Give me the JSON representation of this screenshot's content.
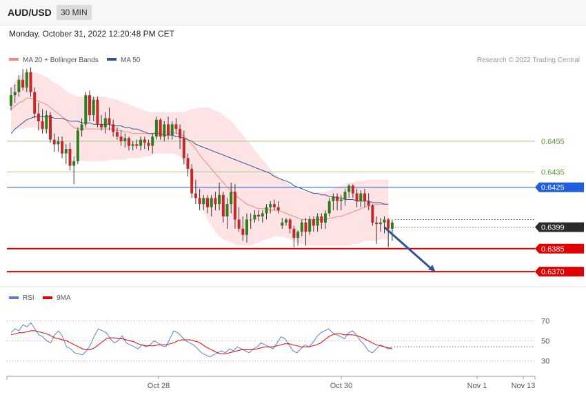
{
  "header": {
    "symbol": "AUD/USD",
    "timeframe": "30 MIN"
  },
  "timestamp": "Monday, October 31, 2022 12:20:48 PM CET",
  "legend_main": [
    {
      "label": "MA 20 + Bollinger Bands",
      "color": "#f08a80"
    },
    {
      "label": "MA 50",
      "color": "#2f5597"
    }
  ],
  "credit": "Research © 2022 Trading Central",
  "legend_rsi": [
    {
      "label": "RSI",
      "color": "#5b7fd6"
    },
    {
      "label": "9MA",
      "color": "#e00000"
    }
  ],
  "colors": {
    "up": "#2e7d1e",
    "down": "#c62828",
    "band": "#fde0e0",
    "resistance": "#a4c98a",
    "pivot": "#1f5fe0",
    "support": "#e00000",
    "last": "#333333",
    "arrow": "#2f5597"
  },
  "chart_data": {
    "type": "candlestick",
    "y_range": [
      0.6362,
      0.6503
    ],
    "x_ticks": [
      "Oct 28",
      "Oct 30",
      "Nov 1",
      "Nov 13"
    ],
    "levels": [
      {
        "label": "0.6455",
        "value": 0.6455,
        "kind": "resistance"
      },
      {
        "label": "0.6435",
        "value": 0.6435,
        "kind": "resistance"
      },
      {
        "label": "0.6425",
        "value": 0.6425,
        "kind": "pivot"
      },
      {
        "label": "0.6399",
        "value": 0.6399,
        "kind": "last"
      },
      {
        "label": "0.6385",
        "value": 0.6385,
        "kind": "support"
      },
      {
        "label": "0.6370",
        "value": 0.637,
        "kind": "support"
      }
    ],
    "ohlc": [
      [
        0.6478,
        0.649,
        0.6475,
        0.6485
      ],
      [
        0.6485,
        0.6492,
        0.648,
        0.6487
      ],
      [
        0.6487,
        0.6498,
        0.6484,
        0.6495
      ],
      [
        0.6495,
        0.6502,
        0.6488,
        0.649
      ],
      [
        0.649,
        0.6502,
        0.6487,
        0.65
      ],
      [
        0.65,
        0.6503,
        0.6484,
        0.6487
      ],
      [
        0.6487,
        0.649,
        0.647,
        0.6473
      ],
      [
        0.6473,
        0.648,
        0.6462,
        0.6468
      ],
      [
        0.6468,
        0.6476,
        0.646,
        0.6463
      ],
      [
        0.6463,
        0.6475,
        0.646,
        0.6472
      ],
      [
        0.6472,
        0.6474,
        0.6454,
        0.6456
      ],
      [
        0.6456,
        0.646,
        0.6448,
        0.6453
      ],
      [
        0.6453,
        0.6458,
        0.6448,
        0.6455
      ],
      [
        0.6455,
        0.6458,
        0.6444,
        0.6447
      ],
      [
        0.6447,
        0.6453,
        0.644,
        0.645
      ],
      [
        0.645,
        0.6454,
        0.6436,
        0.6439
      ],
      [
        0.6439,
        0.6445,
        0.6427,
        0.6442
      ],
      [
        0.6442,
        0.6464,
        0.644,
        0.6462
      ],
      [
        0.6462,
        0.647,
        0.6458,
        0.6466
      ],
      [
        0.6466,
        0.6487,
        0.6464,
        0.6485
      ],
      [
        0.6485,
        0.6488,
        0.6468,
        0.6472
      ],
      [
        0.6472,
        0.6484,
        0.6468,
        0.6482
      ],
      [
        0.6482,
        0.6484,
        0.6464,
        0.6466
      ],
      [
        0.6466,
        0.6472,
        0.6462,
        0.6464
      ],
      [
        0.6464,
        0.6474,
        0.646,
        0.647
      ],
      [
        0.647,
        0.6477,
        0.6462,
        0.6466
      ],
      [
        0.6466,
        0.6469,
        0.6458,
        0.6461
      ],
      [
        0.6461,
        0.6464,
        0.6456,
        0.6458
      ],
      [
        0.6458,
        0.6462,
        0.6452,
        0.6455
      ],
      [
        0.6455,
        0.646,
        0.6451,
        0.6457
      ],
      [
        0.6457,
        0.6458,
        0.6449,
        0.6452
      ],
      [
        0.6452,
        0.6455,
        0.6449,
        0.6453
      ],
      [
        0.6453,
        0.6456,
        0.645,
        0.6452
      ],
      [
        0.6452,
        0.6458,
        0.6449,
        0.6456
      ],
      [
        0.6456,
        0.6458,
        0.645,
        0.6454
      ],
      [
        0.6454,
        0.6456,
        0.6449,
        0.6452
      ],
      [
        0.6452,
        0.646,
        0.6447,
        0.6458
      ],
      [
        0.6458,
        0.6471,
        0.6456,
        0.6469
      ],
      [
        0.6469,
        0.647,
        0.6456,
        0.6458
      ],
      [
        0.6458,
        0.6468,
        0.6455,
        0.6466
      ],
      [
        0.6466,
        0.6471,
        0.6456,
        0.6459
      ],
      [
        0.6459,
        0.6468,
        0.6456,
        0.6466
      ],
      [
        0.6466,
        0.647,
        0.646,
        0.6463
      ],
      [
        0.6463,
        0.6466,
        0.645,
        0.6457
      ],
      [
        0.6457,
        0.6462,
        0.644,
        0.6444
      ],
      [
        0.6444,
        0.6447,
        0.6432,
        0.6437
      ],
      [
        0.6437,
        0.644,
        0.6418,
        0.6421
      ],
      [
        0.6421,
        0.643,
        0.6414,
        0.6418
      ],
      [
        0.6418,
        0.6424,
        0.641,
        0.6414
      ],
      [
        0.6414,
        0.642,
        0.641,
        0.6418
      ],
      [
        0.6418,
        0.642,
        0.6408,
        0.6412
      ],
      [
        0.6412,
        0.642,
        0.6406,
        0.6418
      ],
      [
        0.6418,
        0.6422,
        0.641,
        0.6414
      ],
      [
        0.6414,
        0.6428,
        0.641,
        0.642
      ],
      [
        0.642,
        0.6422,
        0.6402,
        0.6406
      ],
      [
        0.6406,
        0.6418,
        0.6398,
        0.6414
      ],
      [
        0.6414,
        0.6428,
        0.6408,
        0.6422
      ],
      [
        0.6422,
        0.6427,
        0.6398,
        0.6404
      ],
      [
        0.6404,
        0.6412,
        0.6396,
        0.6398
      ],
      [
        0.6398,
        0.6406,
        0.639,
        0.6394
      ],
      [
        0.6394,
        0.6408,
        0.6389,
        0.6404
      ],
      [
        0.6404,
        0.6408,
        0.6398,
        0.6404
      ],
      [
        0.6404,
        0.641,
        0.6402,
        0.6407
      ],
      [
        0.6407,
        0.641,
        0.6403,
        0.6406
      ],
      [
        0.6406,
        0.641,
        0.6402,
        0.6408
      ],
      [
        0.6408,
        0.6414,
        0.6404,
        0.6412
      ],
      [
        0.6412,
        0.6416,
        0.6408,
        0.6414
      ],
      [
        0.6414,
        0.6417,
        0.641,
        0.6412
      ],
      [
        0.6412,
        0.6416,
        0.6408,
        0.641
      ],
      [
        0.64,
        0.6405,
        0.6398,
        0.6402
      ],
      [
        0.6402,
        0.6405,
        0.64,
        0.6404
      ],
      [
        0.6404,
        0.6405,
        0.6395,
        0.6398
      ],
      [
        0.6398,
        0.64,
        0.6386,
        0.6392
      ],
      [
        0.6392,
        0.6397,
        0.6387,
        0.6396
      ],
      [
        0.6396,
        0.6404,
        0.6393,
        0.6402
      ],
      [
        0.6402,
        0.6405,
        0.6387,
        0.6396
      ],
      [
        0.6396,
        0.6406,
        0.6394,
        0.6404
      ],
      [
        0.6404,
        0.6406,
        0.6396,
        0.64
      ],
      [
        0.64,
        0.6408,
        0.6396,
        0.6406
      ],
      [
        0.6406,
        0.6408,
        0.6398,
        0.6402
      ],
      [
        0.6402,
        0.641,
        0.6398,
        0.6408
      ],
      [
        0.6408,
        0.6418,
        0.6406,
        0.6416
      ],
      [
        0.6416,
        0.6421,
        0.641,
        0.6419
      ],
      [
        0.6419,
        0.6421,
        0.641,
        0.6416
      ],
      [
        0.6416,
        0.642,
        0.641,
        0.6417
      ],
      [
        0.6417,
        0.6424,
        0.6413,
        0.6422
      ],
      [
        0.6422,
        0.6427,
        0.6418,
        0.6426
      ],
      [
        0.6426,
        0.6427,
        0.6418,
        0.6421
      ],
      [
        0.6421,
        0.6424,
        0.6412,
        0.6416
      ],
      [
        0.6416,
        0.6423,
        0.6412,
        0.6421
      ],
      [
        0.6421,
        0.6424,
        0.6412,
        0.6416
      ],
      [
        0.6416,
        0.6421,
        0.641,
        0.6413
      ],
      [
        0.6413,
        0.6414,
        0.64,
        0.6402
      ],
      [
        0.6402,
        0.6406,
        0.6388,
        0.6401
      ],
      [
        0.6401,
        0.6405,
        0.6396,
        0.6402
      ],
      [
        0.6402,
        0.6406,
        0.6395,
        0.6404
      ],
      [
        0.6404,
        0.6405,
        0.6386,
        0.6398
      ],
      [
        0.6398,
        0.6404,
        0.639,
        0.6402
      ]
    ],
    "ma20": [
      0.6476,
      0.6478,
      0.648,
      0.6481,
      0.6483,
      0.6483,
      0.6482,
      0.6481,
      0.648,
      0.6479,
      0.6477,
      0.6475,
      0.6473,
      0.6471,
      0.6469,
      0.6466,
      0.6464,
      0.6463,
      0.6463,
      0.6463,
      0.6463,
      0.6463,
      0.6463,
      0.6463,
      0.6463,
      0.6463,
      0.6463,
      0.6462,
      0.6462,
      0.6461,
      0.6461,
      0.646,
      0.646,
      0.646,
      0.646,
      0.646,
      0.646,
      0.6461,
      0.6461,
      0.6461,
      0.6461,
      0.6461,
      0.646,
      0.646,
      0.6458,
      0.6456,
      0.6453,
      0.645,
      0.6446,
      0.6443,
      0.644,
      0.6437,
      0.6434,
      0.6431,
      0.6428,
      0.6425,
      0.6423,
      0.642,
      0.6418,
      0.6416,
      0.6414,
      0.6413,
      0.6412,
      0.6411,
      0.6411,
      0.6411,
      0.641,
      0.641,
      0.641,
      0.6409,
      0.6408,
      0.6407,
      0.6406,
      0.6405,
      0.6404,
      0.6404,
      0.6404,
      0.6404,
      0.6404,
      0.6404,
      0.6404,
      0.6405,
      0.6405,
      0.6406,
      0.6406,
      0.6407,
      0.6408,
      0.6409,
      0.641,
      0.6411,
      0.6412,
      0.6413,
      0.6413,
      0.6414,
      0.6414,
      0.6414,
      0.6414
    ],
    "ma50": [
      0.646,
      0.6463,
      0.6465,
      0.6467,
      0.6469,
      0.647,
      0.6471,
      0.6471,
      0.6471,
      0.6471,
      0.6471,
      0.647,
      0.647,
      0.647,
      0.6469,
      0.6468,
      0.6468,
      0.6468,
      0.6467,
      0.6467,
      0.6467,
      0.6466,
      0.6466,
      0.6466,
      0.6466,
      0.6466,
      0.6465,
      0.6465,
      0.6465,
      0.6464,
      0.6464,
      0.6463,
      0.6463,
      0.6462,
      0.6461,
      0.646,
      0.646,
      0.646,
      0.646,
      0.6459,
      0.6459,
      0.6459,
      0.6458,
      0.6458,
      0.6457,
      0.6456,
      0.6455,
      0.6453,
      0.6452,
      0.6451,
      0.645,
      0.6449,
      0.6448,
      0.6447,
      0.6446,
      0.6445,
      0.6444,
      0.6443,
      0.6442,
      0.6441,
      0.644,
      0.6439,
      0.6438,
      0.6437,
      0.6436,
      0.6435,
      0.6434,
      0.6432,
      0.6431,
      0.643,
      0.6429,
      0.6428,
      0.6426,
      0.6425,
      0.6424,
      0.6423,
      0.6422,
      0.6421,
      0.6421,
      0.642,
      0.642,
      0.6419,
      0.6419,
      0.6418,
      0.6418,
      0.6417,
      0.6417,
      0.6417,
      0.6416,
      0.6416,
      0.6416,
      0.6416,
      0.6415,
      0.6415,
      0.6415,
      0.6414,
      0.6414
    ],
    "bb_upper": [
      0.649,
      0.6494,
      0.6497,
      0.6499,
      0.65,
      0.65,
      0.65,
      0.6499,
      0.6498,
      0.6497,
      0.6495,
      0.6493,
      0.6492,
      0.649,
      0.6488,
      0.6486,
      0.6485,
      0.6484,
      0.6484,
      0.6484,
      0.6484,
      0.6484,
      0.6484,
      0.6484,
      0.6484,
      0.6483,
      0.6483,
      0.6482,
      0.6481,
      0.648,
      0.6479,
      0.6478,
      0.6477,
      0.6476,
      0.6475,
      0.6474,
      0.6474,
      0.6474,
      0.6474,
      0.6474,
      0.6474,
      0.6474,
      0.6474,
      0.6474,
      0.6474,
      0.6475,
      0.6476,
      0.6476,
      0.6477,
      0.6477,
      0.6477,
      0.6476,
      0.6475,
      0.6474,
      0.6472,
      0.647,
      0.6468,
      0.6465,
      0.6462,
      0.6459,
      0.6456,
      0.6453,
      0.6449,
      0.6446,
      0.6443,
      0.644,
      0.6437,
      0.6434,
      0.6432,
      0.643,
      0.6428,
      0.6426,
      0.6425,
      0.6424,
      0.6423,
      0.6422,
      0.6422,
      0.6422,
      0.6422,
      0.6422,
      0.6422,
      0.6423,
      0.6424,
      0.6425,
      0.6426,
      0.6427,
      0.6428,
      0.6428,
      0.6429,
      0.6429,
      0.6429,
      0.643,
      0.643,
      0.643,
      0.643,
      0.643,
      0.643
    ],
    "bb_lower": [
      0.6462,
      0.6462,
      0.6463,
      0.6463,
      0.6464,
      0.6464,
      0.6464,
      0.6463,
      0.6462,
      0.6461,
      0.6459,
      0.6457,
      0.6454,
      0.6452,
      0.645,
      0.6447,
      0.6445,
      0.6443,
      0.6442,
      0.6442,
      0.6442,
      0.6442,
      0.6442,
      0.6442,
      0.6442,
      0.6443,
      0.6443,
      0.6443,
      0.6443,
      0.6443,
      0.6444,
      0.6444,
      0.6444,
      0.6444,
      0.6445,
      0.6445,
      0.6446,
      0.6447,
      0.6447,
      0.6447,
      0.6447,
      0.6447,
      0.6446,
      0.6445,
      0.6442,
      0.6437,
      0.643,
      0.6423,
      0.6416,
      0.6409,
      0.6404,
      0.64,
      0.6396,
      0.6393,
      0.6391,
      0.639,
      0.6389,
      0.6388,
      0.6387,
      0.6387,
      0.6387,
      0.6387,
      0.6388,
      0.6389,
      0.639,
      0.6391,
      0.6392,
      0.6393,
      0.6393,
      0.6393,
      0.6392,
      0.6391,
      0.639,
      0.6389,
      0.6388,
      0.6387,
      0.6387,
      0.6387,
      0.6387,
      0.6387,
      0.6387,
      0.6387,
      0.6387,
      0.6387,
      0.6387,
      0.6387,
      0.6387,
      0.6388,
      0.6388,
      0.6389,
      0.639,
      0.639,
      0.639,
      0.639,
      0.6391,
      0.6391,
      0.6391
    ],
    "arrow": {
      "from": [
        95,
        0.6399
      ],
      "to": [
        108,
        0.637
      ]
    },
    "rsi": {
      "levels": [
        70,
        50,
        30
      ],
      "y_range": [
        20,
        82
      ],
      "rsi": [
        58,
        62,
        60,
        66,
        64,
        68,
        62,
        56,
        54,
        50,
        48,
        56,
        60,
        54,
        44,
        42,
        38,
        37,
        36,
        40,
        46,
        55,
        62,
        60,
        58,
        52,
        48,
        50,
        55,
        48,
        46,
        44,
        42,
        46,
        44,
        46,
        50,
        48,
        45,
        44,
        52,
        60,
        58,
        54,
        50,
        48,
        46,
        42,
        38,
        36,
        34,
        36,
        38,
        40,
        38,
        42,
        40,
        44,
        42,
        40,
        38,
        42,
        44,
        48,
        46,
        44,
        42,
        48,
        54,
        52,
        46,
        40,
        38,
        42,
        46,
        44,
        48,
        54,
        58,
        60,
        62,
        58,
        56,
        54,
        52,
        58,
        60,
        56,
        50,
        46,
        40,
        38,
        42,
        46,
        44,
        42,
        44
      ],
      "ma9": [
        56,
        57,
        58,
        58,
        59,
        60,
        60,
        59,
        58,
        57,
        55,
        53,
        52,
        51,
        50,
        48,
        46,
        44,
        42,
        41,
        41,
        43,
        46,
        49,
        52,
        53,
        53,
        52,
        52,
        51,
        50,
        49,
        47,
        46,
        45,
        45,
        45,
        46,
        46,
        46,
        47,
        48,
        50,
        51,
        51,
        51,
        50,
        49,
        47,
        44,
        42,
        40,
        38,
        37,
        37,
        38,
        39,
        40,
        41,
        41,
        41,
        41,
        42,
        43,
        44,
        44,
        44,
        45,
        46,
        47,
        47,
        46,
        45,
        44,
        44,
        44,
        45,
        46,
        48,
        51,
        54,
        56,
        57,
        57,
        56,
        56,
        56,
        55,
        54,
        52,
        50,
        48,
        46,
        45,
        44,
        43,
        42
      ]
    }
  }
}
